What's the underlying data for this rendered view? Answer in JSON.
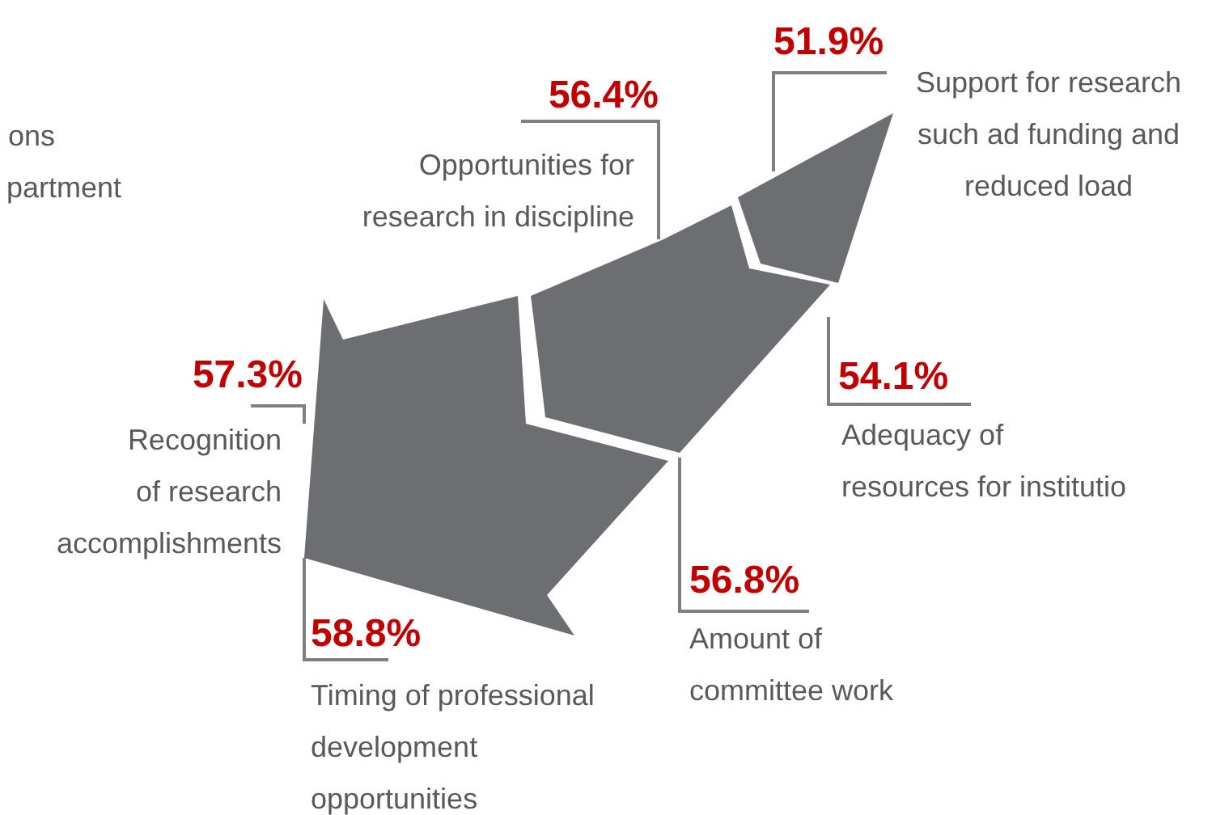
{
  "chart_data": {
    "type": "other",
    "categories": [
      "Opportunities for\nresearch in discipline",
      "Support for research\nsuch ad funding and\nreduced load",
      "Recognition\nof research\naccomplishments",
      "Adequacy of\nresources for institutio",
      "Amount of\ncommittee work",
      "Timing of professional\ndevelopment\nopportunities"
    ],
    "values": [
      56.4,
      51.9,
      57.3,
      54.1,
      56.8,
      58.8
    ],
    "value_labels": [
      "56.4%",
      "51.9%",
      "57.3%",
      "54.1%",
      "56.8%",
      "58.8%"
    ],
    "color": "#6d6e71",
    "annotations": [
      "ons\npartment"
    ]
  }
}
